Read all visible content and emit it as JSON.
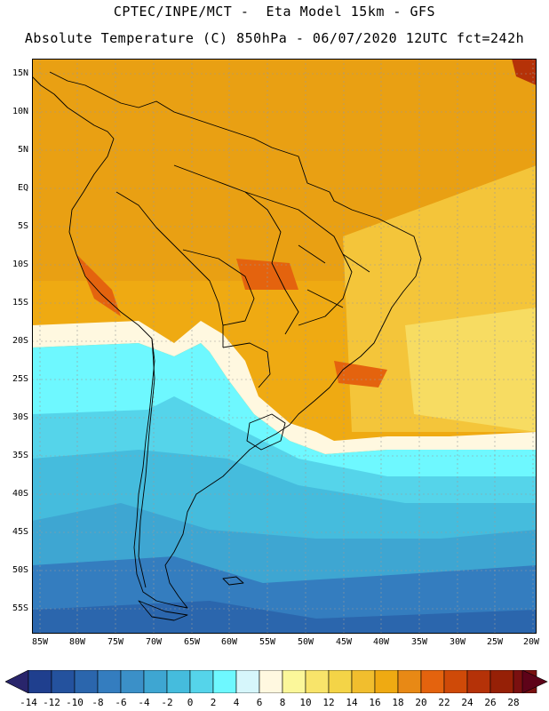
{
  "header": {
    "line1": "CPTEC/INPE/MCT -  Eta Model 15km - GFS",
    "line2": "Absolute Temperature (C) 850hPa - 06/07/2020 12UTC fct=242h"
  },
  "map": {
    "lat_labels": [
      "15N",
      "10N",
      "5N",
      "EQ",
      "5S",
      "10S",
      "15S",
      "20S",
      "25S",
      "30S",
      "35S",
      "40S",
      "45S",
      "50S",
      "55S"
    ],
    "lon_labels": [
      "85W",
      "80W",
      "75W",
      "70W",
      "65W",
      "60W",
      "55W",
      "50W",
      "45W",
      "40W",
      "35W",
      "30W",
      "25W",
      "20W"
    ]
  },
  "colorbar": {
    "labels": [
      "-14",
      "-12",
      "-10",
      "-8",
      "-6",
      "-4",
      "-2",
      "0",
      "2",
      "4",
      "6",
      "8",
      "10",
      "12",
      "14",
      "16",
      "18",
      "20",
      "22",
      "24",
      "26",
      "28"
    ],
    "colors": [
      "#1f3f8e",
      "#24529e",
      "#2b66ad",
      "#347dbf",
      "#3b90c8",
      "#3ea6d2",
      "#45bcdd",
      "#55d4ea",
      "#6ef8ff",
      "#d6f6fb",
      "#fff8e0",
      "#fbf79a",
      "#f8e46a",
      "#f4d447",
      "#f1be2e",
      "#efaa12",
      "#e88915",
      "#e4630e",
      "#cf4a08",
      "#b53208",
      "#962006",
      "#7a1010"
    ],
    "low_arrow_color": "#29256b",
    "high_arrow_color": "#5e0319"
  }
}
